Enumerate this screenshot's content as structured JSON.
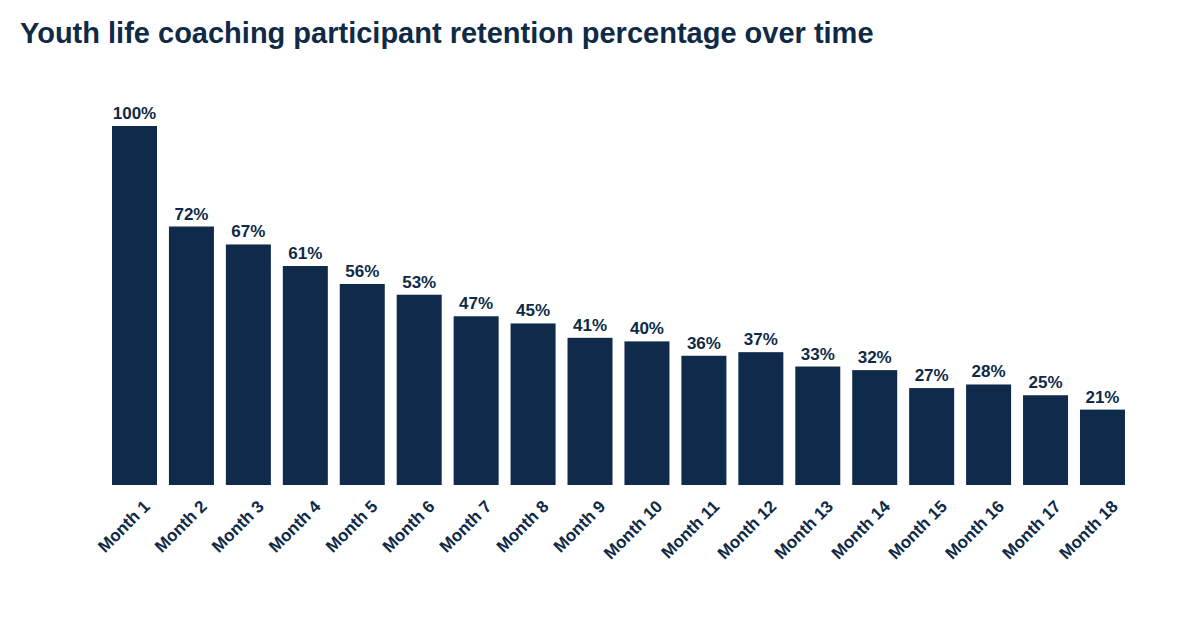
{
  "chart_data": {
    "type": "bar",
    "title": "Youth life coaching participant retention percentage over time",
    "categories": [
      "Month 1",
      "Month 2",
      "Month 3",
      "Month 4",
      "Month 5",
      "Month 6",
      "Month 7",
      "Month 8",
      "Month 9",
      "Month 10",
      "Month 11",
      "Month 12",
      "Month 13",
      "Month 14",
      "Month 15",
      "Month 16",
      "Month 17",
      "Month 18"
    ],
    "values": [
      100,
      72,
      67,
      61,
      56,
      53,
      47,
      45,
      41,
      40,
      36,
      37,
      33,
      32,
      27,
      28,
      25,
      21
    ],
    "value_labels": [
      "100%",
      "72%",
      "67%",
      "61%",
      "56%",
      "53%",
      "47%",
      "45%",
      "41%",
      "40%",
      "36%",
      "37%",
      "33%",
      "32%",
      "27%",
      "28%",
      "25%",
      "21%"
    ],
    "color": "#0f2a4a",
    "ylim": [
      0,
      100
    ],
    "grid": false,
    "data_labels": true,
    "tick_labels": "x"
  }
}
